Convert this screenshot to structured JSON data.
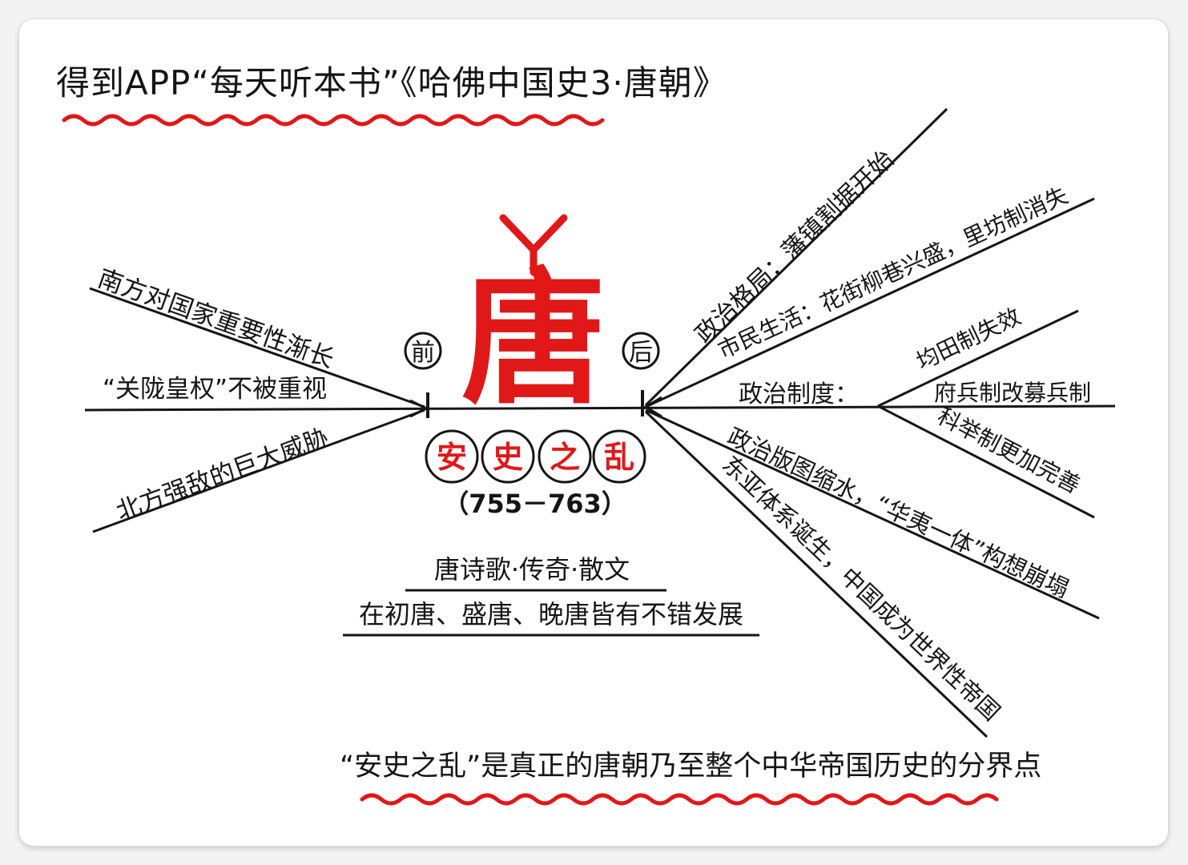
{
  "header": {
    "title": "得到APP“每天听本书”《哈佛中国史3·唐朝》"
  },
  "center": {
    "tang_char": "唐",
    "before_label": "前",
    "after_label": "后",
    "event_chars": [
      "安",
      "史",
      "之",
      "乱"
    ],
    "years": "（755－763）"
  },
  "left_branches": [
    "南方对国家重要性渐长",
    "“关陇皇权”不被重视",
    "北方强敌的巨大威胁"
  ],
  "right_branches": {
    "political_pattern": "政治格局：藩镇割据开始",
    "civic_life": "市民生活：花街柳巷兴盛，里坊制消失",
    "political_system": {
      "label": "政治制度：",
      "items": [
        "均田制失效",
        "府兵制改募兵制",
        "科举制更加完善"
      ]
    },
    "territory": "政治版图缩水，“华夷一体”构想崩塌",
    "east_asia": "东亚体系诞生，中国成为世界性帝国"
  },
  "culture": {
    "line1": "唐诗歌·传奇·散文",
    "line2": "在初唐、盛唐、晚唐皆有不错发展"
  },
  "footer": {
    "conclusion": "“安史之乱”是真正的唐朝乃至整个中华帝国历史的分界点"
  },
  "colors": {
    "accent": "#e01818",
    "ink": "#151515",
    "background": "#ffffff"
  }
}
